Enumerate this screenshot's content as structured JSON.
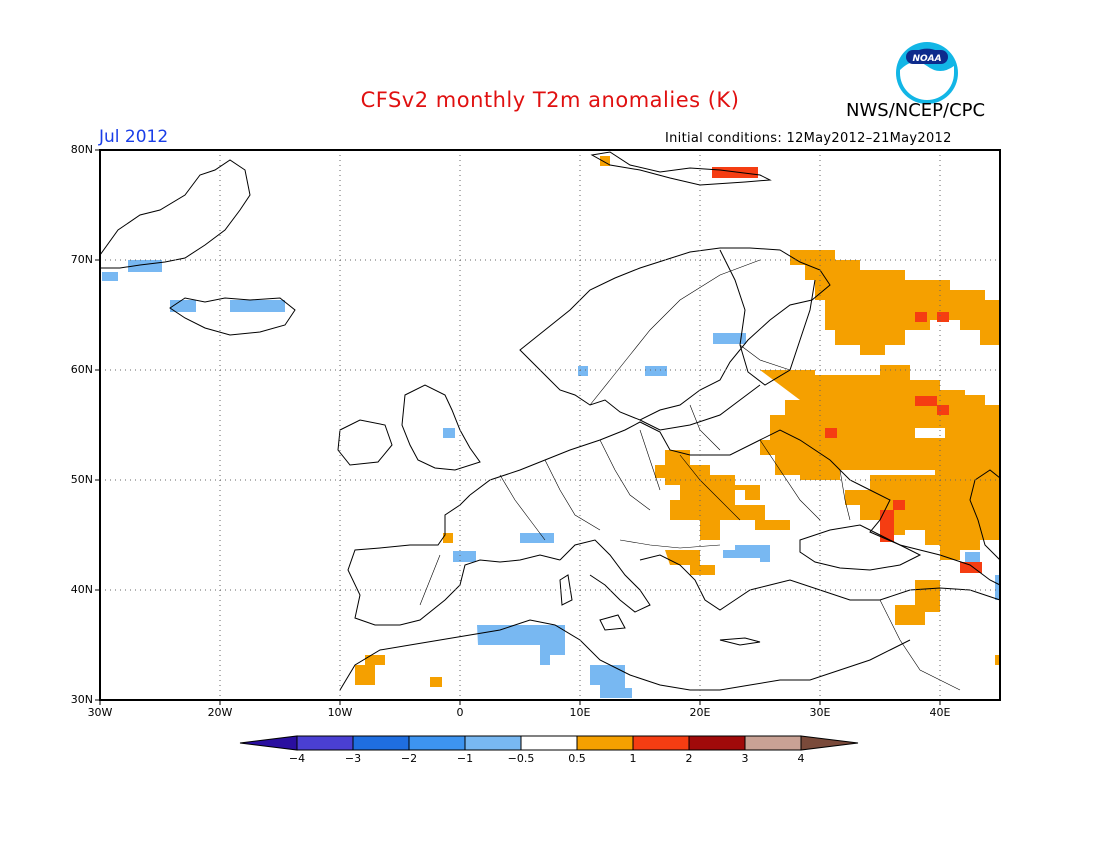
{
  "title": "CFSv2 monthly T2m anomalies (K)",
  "agency": "NWS/NCEP/CPC",
  "period": "Jul 2012",
  "initial_conditions": "Initial conditions: 12May2012–21May2012",
  "logo_text": "NOAA",
  "y_ticks": [
    "80N",
    "70N",
    "60N",
    "50N",
    "40N",
    "30N"
  ],
  "x_ticks": [
    "30W",
    "20W",
    "10W",
    "0",
    "10E",
    "20E",
    "30E",
    "40E"
  ],
  "colorbar": {
    "ticks": [
      "−4",
      "−3",
      "−2",
      "−1",
      "−0.5",
      "0.5",
      "1",
      "2",
      "3",
      "4"
    ],
    "colors": [
      "#2a0fa0",
      "#4a3fd2",
      "#1f6ee0",
      "#3d94f0",
      "#78b8f2",
      "#ffffff",
      "#f5a000",
      "#f53d12",
      "#a00a0a",
      "#c9a295",
      "#7a4a3a"
    ]
  }
}
